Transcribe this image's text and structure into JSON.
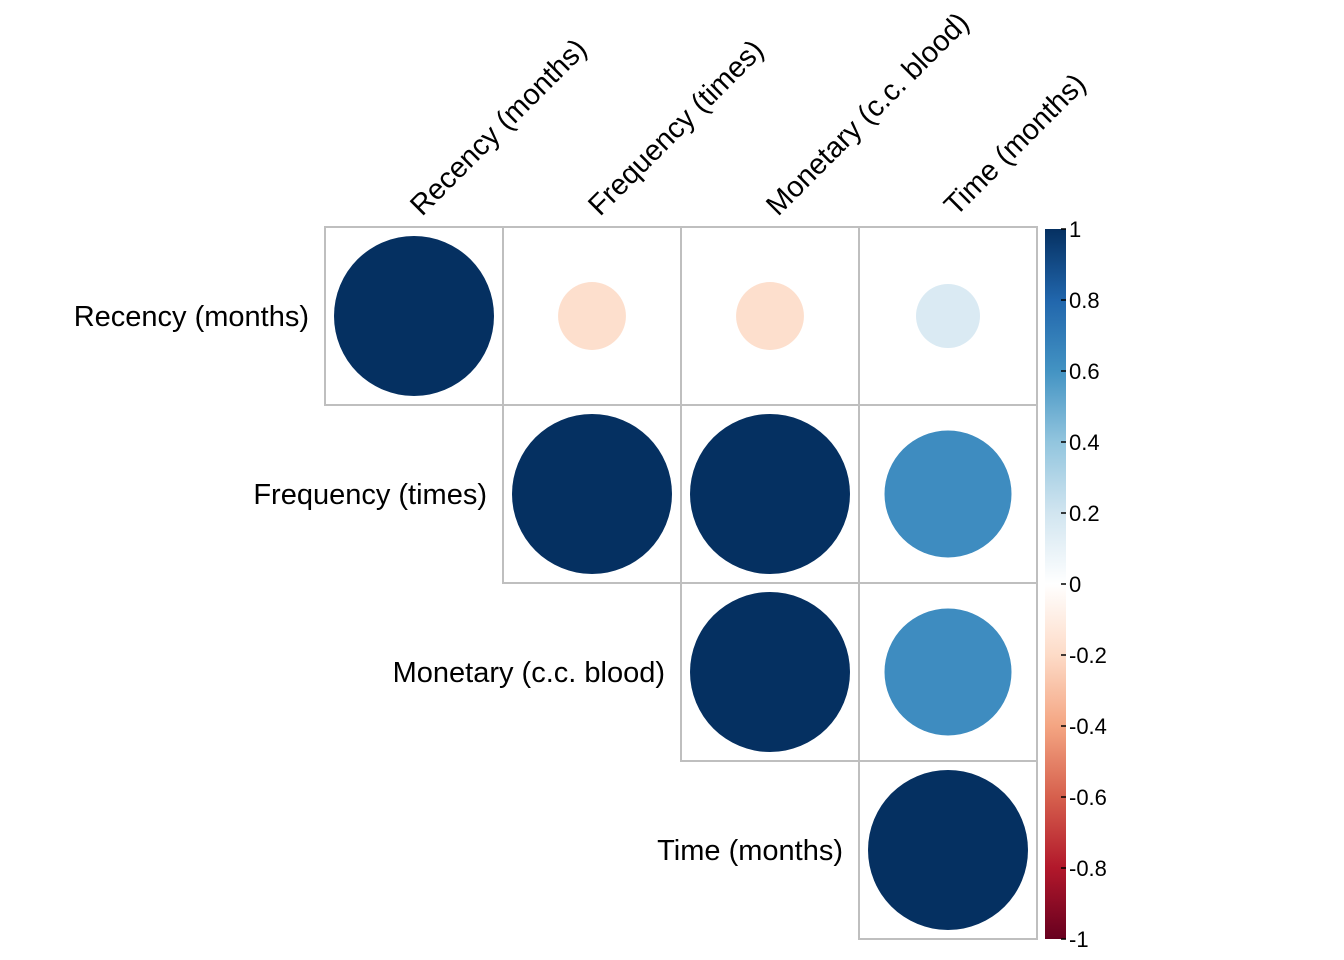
{
  "chart_data": {
    "type": "heatmap",
    "subtype": "correlation-matrix-circles",
    "layout": "upper-triangle",
    "variables": [
      "Recency (months)",
      "Frequency (times)",
      "Monetary (c.c. blood)",
      "Time (months)"
    ],
    "matrix": [
      [
        1.0,
        -0.18,
        -0.18,
        0.16
      ],
      [
        null,
        1.0,
        1.0,
        0.63
      ],
      [
        null,
        null,
        1.0,
        0.63
      ],
      [
        null,
        null,
        null,
        1.0
      ]
    ],
    "colorbar": {
      "range": [
        -1,
        1
      ],
      "ticks": [
        "1",
        "0.8",
        "0.6",
        "0.4",
        "0.2",
        "0",
        "-0.2",
        "-0.4",
        "-0.6",
        "-0.8",
        "-1"
      ],
      "colors": [
        "#67001F",
        "#B2182B",
        "#D6604D",
        "#F4A582",
        "#FDDBC7",
        "#FFFFFF",
        "#D1E5F0",
        "#92C5DE",
        "#4393C3",
        "#2166AC",
        "#053061"
      ]
    },
    "grid": true,
    "title": "",
    "xlabel": "",
    "ylabel": ""
  }
}
